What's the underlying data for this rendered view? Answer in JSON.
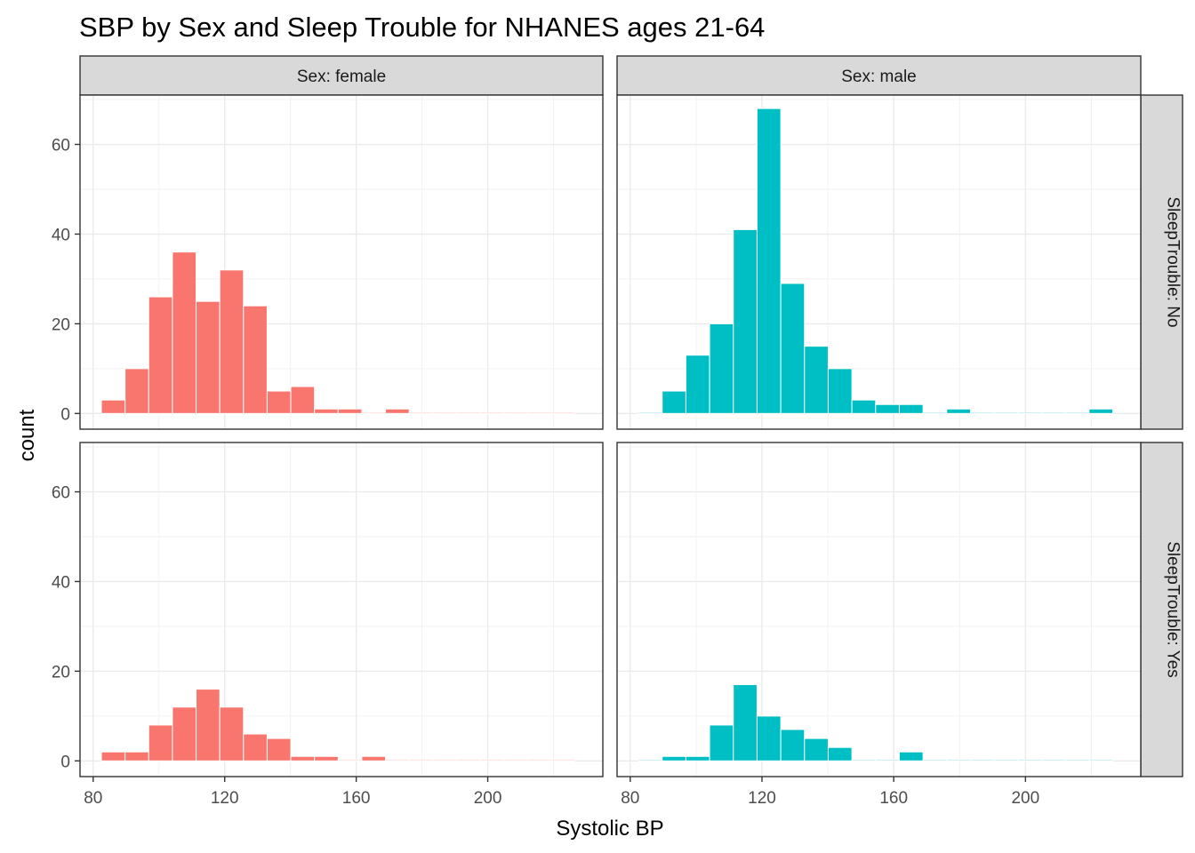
{
  "chart_data": {
    "type": "bar",
    "subtype": "faceted-histogram",
    "title": "SBP by Sex and Sleep Trouble for NHANES ages 21-64",
    "xlabel": "Systolic BP",
    "ylabel": "count",
    "xlim": [
      76,
      235
    ],
    "ylim": [
      -3.5,
      71
    ],
    "x_ticks": [
      80,
      120,
      160,
      200
    ],
    "y_ticks": [
      0,
      20,
      40,
      60
    ],
    "bin_width": 7.2,
    "grid": true,
    "legend": "none",
    "colors": {
      "female": "#F8766D",
      "male": "#00BFC4"
    },
    "column_strips": [
      "Sex: female",
      "Sex: male"
    ],
    "row_strips": [
      "SleepTrouble: No",
      "SleepTrouble: Yes"
    ],
    "bin_centers": [
      86.1,
      93.3,
      100.5,
      107.7,
      114.9,
      122.1,
      129.3,
      136.5,
      143.7,
      150.9,
      158.1,
      165.3,
      172.5,
      179.7,
      186.9,
      194.1,
      201.3,
      208.5,
      215.7,
      222.9
    ],
    "panels": [
      {
        "sex": "female",
        "sleep_trouble": "No",
        "counts": [
          3,
          10,
          26,
          36,
          25,
          32,
          24,
          5,
          6,
          1,
          1,
          0,
          1,
          0,
          0,
          0,
          0,
          0,
          0,
          0
        ]
      },
      {
        "sex": "male",
        "sleep_trouble": "No",
        "counts": [
          0,
          5,
          13,
          20,
          41,
          68,
          29,
          15,
          10,
          3,
          2,
          2,
          0,
          1,
          0,
          0,
          0,
          0,
          0,
          1
        ]
      },
      {
        "sex": "female",
        "sleep_trouble": "Yes",
        "counts": [
          2,
          2,
          8,
          12,
          16,
          12,
          6,
          5,
          1,
          1,
          0,
          1,
          0,
          0,
          0,
          0,
          0,
          0,
          0,
          0
        ]
      },
      {
        "sex": "male",
        "sleep_trouble": "Yes",
        "counts": [
          0,
          1,
          1,
          8,
          17,
          10,
          7,
          5,
          3,
          0,
          0,
          2,
          0,
          0,
          0,
          0,
          0,
          0,
          0,
          0
        ]
      }
    ]
  }
}
